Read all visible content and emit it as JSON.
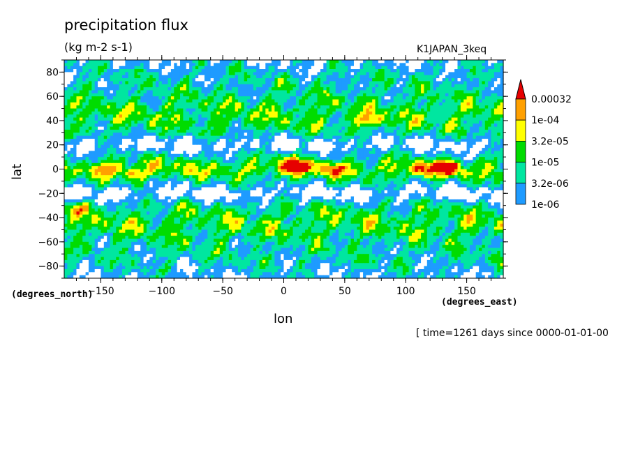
{
  "chart_data": {
    "type": "heatmap",
    "title": "precipitation flux",
    "units": "(kg m-2 s-1)",
    "run_label": "K1JAPAN_3keq",
    "xlabel": "lon",
    "ylabel": "lat",
    "x_unit": "(degrees_east)",
    "y_unit": "(degrees_north)",
    "xlim": [
      -180,
      180
    ],
    "ylim": [
      -90,
      90
    ],
    "x_ticks": [
      -150,
      -100,
      -50,
      0,
      50,
      100,
      150
    ],
    "y_ticks": [
      80,
      60,
      40,
      20,
      0,
      -20,
      -40,
      -60,
      -80
    ],
    "x_tick_labels": [
      "−150",
      "−100",
      "−50",
      "0",
      "50",
      "100",
      "150"
    ],
    "y_tick_labels": [
      "80",
      "60",
      "40",
      "20",
      "0",
      "−20",
      "−40",
      "−60",
      "−80"
    ],
    "levels": [
      1e-06,
      3.2e-06,
      1e-05,
      3.2e-05,
      0.0001,
      0.00032
    ],
    "level_labels": [
      "0.00032",
      "1e-04",
      "3.2e-05",
      "1e-05",
      "3.2e-06",
      "1e-06"
    ],
    "colors": {
      "below": "#ffffff",
      "1e-06": "#1e9bff",
      "3.2e-06": "#00e6a0",
      "1e-05": "#00dc00",
      "3.2e-05": "#ffff00",
      "1e-04": "#ffa000",
      "0.00032": "#e60000"
    },
    "features": [
      {
        "lon": 5,
        "lat": 3,
        "level": 5,
        "radius": 12,
        "note": "equatorial maxima"
      },
      {
        "lon": 15,
        "lat": 2,
        "level": 5
      },
      {
        "lon": 112,
        "lat": -1,
        "level": 5
      },
      {
        "lon": 128,
        "lat": 2,
        "level": 5
      },
      {
        "lon": 137,
        "lat": 0,
        "level": 5
      },
      {
        "lon": -145,
        "lat": 0,
        "level": 5
      },
      {
        "lon": -123,
        "lat": -5,
        "level": 5
      },
      {
        "lon": -170,
        "lat": -33,
        "level": 5
      },
      {
        "lon": 70,
        "lat": 40,
        "level": 5
      },
      {
        "lon": 41,
        "lat": 0,
        "level": 5
      }
    ],
    "dry_regions_lat_bands": [
      {
        "lat_range": [
          -30,
          -10
        ],
        "description": "subtropical dry belt south"
      },
      {
        "lat_range": [
          10,
          30
        ],
        "description": "subtropical dry belt north"
      }
    ],
    "time_note": "[ time=1261 days since 0000-01-01-00"
  }
}
